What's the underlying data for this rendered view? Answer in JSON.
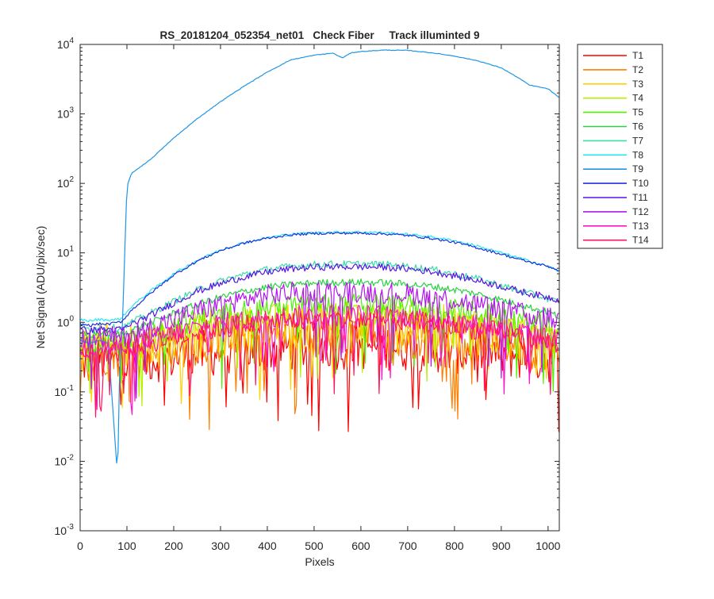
{
  "chart_data": {
    "type": "line",
    "title": "RS_20181204_052354_net01   Check Fiber     Track illuminted 9",
    "xlabel": "Pixels",
    "ylabel": "Net Signal (ADU/pix/sec)",
    "xlim": [
      0,
      1024
    ],
    "ylim": [
      0.001,
      10000
    ],
    "y_scale": "log",
    "grid": false,
    "legend_position": "outside-right",
    "x_ticks": [
      "0",
      "100",
      "200",
      "300",
      "400",
      "500",
      "600",
      "700",
      "800",
      "900",
      "1000"
    ],
    "y_ticks": [
      {
        "base": "10",
        "exp": "-3"
      },
      {
        "base": "10",
        "exp": "-2"
      },
      {
        "base": "10",
        "exp": "-1"
      },
      {
        "base": "10",
        "exp": "0"
      },
      {
        "base": "10",
        "exp": "1"
      },
      {
        "base": "10",
        "exp": "2"
      },
      {
        "base": "10",
        "exp": "3"
      },
      {
        "base": "10",
        "exp": "4"
      }
    ],
    "x": [
      0,
      20,
      40,
      60,
      80,
      85,
      90,
      100,
      110,
      150,
      200,
      250,
      300,
      350,
      400,
      450,
      500,
      540,
      560,
      580,
      600,
      650,
      700,
      750,
      800,
      850,
      900,
      940,
      960,
      1000,
      1024
    ],
    "series": [
      {
        "name": "T1",
        "color": "#ff0000",
        "values": [
          0.3,
          0.25,
          0.3,
          0.28,
          0.26,
          0.26,
          0.26,
          0.27,
          0.28,
          0.3,
          0.32,
          0.35,
          0.38,
          0.4,
          0.42,
          0.44,
          0.45,
          0.46,
          0.46,
          0.46,
          0.46,
          0.45,
          0.44,
          0.42,
          0.4,
          0.38,
          0.35,
          0.33,
          0.32,
          0.3,
          0.28
        ]
      },
      {
        "name": "T2",
        "color": "#ff7f00",
        "values": [
          0.4,
          0.35,
          0.38,
          0.37,
          0.36,
          0.36,
          0.36,
          0.37,
          0.38,
          0.42,
          0.48,
          0.52,
          0.56,
          0.6,
          0.64,
          0.68,
          0.7,
          0.71,
          0.71,
          0.71,
          0.71,
          0.7,
          0.68,
          0.65,
          0.62,
          0.58,
          0.54,
          0.5,
          0.48,
          0.45,
          0.42
        ]
      },
      {
        "name": "T3",
        "color": "#ffd200",
        "values": [
          0.45,
          0.4,
          0.44,
          0.43,
          0.42,
          0.42,
          0.42,
          0.43,
          0.45,
          0.5,
          0.58,
          0.65,
          0.72,
          0.78,
          0.84,
          0.88,
          0.9,
          0.91,
          0.91,
          0.91,
          0.91,
          0.9,
          0.88,
          0.85,
          0.8,
          0.75,
          0.68,
          0.62,
          0.6,
          0.55,
          0.5
        ]
      },
      {
        "name": "T4",
        "color": "#b4f000",
        "values": [
          0.5,
          0.45,
          0.5,
          0.49,
          0.48,
          0.48,
          0.48,
          0.5,
          0.52,
          0.6,
          0.72,
          0.85,
          0.98,
          1.1,
          1.2,
          1.26,
          1.3,
          1.32,
          1.32,
          1.32,
          1.32,
          1.3,
          1.26,
          1.2,
          1.12,
          1.02,
          0.9,
          0.8,
          0.76,
          0.68,
          0.6
        ]
      },
      {
        "name": "T5",
        "color": "#50f000",
        "values": [
          0.55,
          0.5,
          0.55,
          0.54,
          0.53,
          0.53,
          0.53,
          0.56,
          0.6,
          0.72,
          0.9,
          1.1,
          1.3,
          1.5,
          1.65,
          1.75,
          1.8,
          1.82,
          1.82,
          1.82,
          1.82,
          1.8,
          1.74,
          1.65,
          1.52,
          1.38,
          1.2,
          1.05,
          1.0,
          0.88,
          0.78
        ]
      },
      {
        "name": "T6",
        "color": "#28d240",
        "values": [
          0.7,
          0.65,
          0.7,
          0.69,
          0.68,
          0.68,
          0.68,
          0.72,
          0.78,
          0.98,
          1.35,
          1.8,
          2.3,
          2.8,
          3.2,
          3.5,
          3.7,
          3.75,
          3.76,
          3.78,
          3.78,
          3.72,
          3.55,
          3.3,
          2.95,
          2.55,
          2.1,
          1.8,
          1.65,
          1.4,
          1.2
        ]
      },
      {
        "name": "T7",
        "color": "#3cdcaa",
        "values": [
          0.85,
          0.8,
          0.85,
          0.84,
          0.83,
          0.83,
          0.83,
          0.9,
          1.0,
          1.35,
          2.0,
          2.9,
          3.9,
          4.9,
          5.8,
          6.4,
          6.8,
          6.9,
          6.9,
          6.9,
          6.9,
          6.8,
          6.4,
          5.8,
          5.0,
          4.2,
          3.4,
          2.8,
          2.6,
          2.2,
          1.9
        ]
      },
      {
        "name": "T8",
        "color": "#28e6f0",
        "values": [
          1.1,
          1.05,
          1.1,
          1.08,
          1.1,
          1.12,
          1.2,
          1.4,
          1.7,
          2.8,
          5.0,
          7.8,
          11.0,
          14.0,
          16.5,
          18.5,
          19.5,
          19.8,
          19.9,
          19.9,
          20.0,
          19.5,
          18.5,
          17.0,
          15.0,
          12.5,
          10.0,
          8.4,
          7.6,
          6.4,
          5.4
        ]
      },
      {
        "name": "T9",
        "color": "#1e96e6",
        "values": [
          0.55,
          0.5,
          0.55,
          0.5,
          0.006,
          0.3,
          0.8,
          90.0,
          140.0,
          220.0,
          450.0,
          850.0,
          1500.0,
          2500.0,
          4000.0,
          6000.0,
          7000.0,
          7500.0,
          6400.0,
          7600.0,
          7900.0,
          8300.0,
          8200.0,
          7600.0,
          6800.0,
          5800.0,
          4600.0,
          3200.0,
          2600.0,
          2300.0,
          1700.0
        ]
      },
      {
        "name": "T10",
        "color": "#1e32dc",
        "values": [
          0.95,
          0.9,
          0.95,
          0.94,
          1.0,
          1.0,
          1.05,
          1.25,
          1.5,
          2.6,
          4.8,
          7.6,
          10.8,
          13.8,
          16.3,
          18.2,
          19.0,
          19.2,
          19.2,
          19.2,
          19.2,
          18.8,
          17.8,
          16.2,
          14.2,
          11.8,
          9.6,
          8.0,
          7.4,
          6.4,
          5.6
        ]
      },
      {
        "name": "T11",
        "color": "#5a14e6",
        "values": [
          0.8,
          0.75,
          0.8,
          0.79,
          0.78,
          0.78,
          0.78,
          0.85,
          0.95,
          1.25,
          1.9,
          2.8,
          3.6,
          4.5,
          5.3,
          5.9,
          6.2,
          6.3,
          6.3,
          6.3,
          6.3,
          6.2,
          5.9,
          5.4,
          4.7,
          4.0,
          3.3,
          2.8,
          2.6,
          2.3,
          2.1
        ]
      },
      {
        "name": "T12",
        "color": "#b414f0",
        "values": [
          0.62,
          0.58,
          0.62,
          0.61,
          0.6,
          0.6,
          0.6,
          0.64,
          0.7,
          0.85,
          1.1,
          1.45,
          1.8,
          2.15,
          2.45,
          2.65,
          2.75,
          2.78,
          2.78,
          2.78,
          2.78,
          2.7,
          2.55,
          2.35,
          2.1,
          1.8,
          1.55,
          1.35,
          1.28,
          1.15,
          1.05
        ]
      },
      {
        "name": "T13",
        "color": "#ff14c8",
        "values": [
          0.45,
          0.42,
          0.45,
          0.44,
          0.43,
          0.43,
          0.43,
          0.46,
          0.5,
          0.58,
          0.7,
          0.82,
          0.95,
          1.05,
          1.15,
          1.22,
          1.25,
          1.26,
          1.26,
          1.26,
          1.26,
          1.24,
          1.2,
          1.12,
          1.02,
          0.92,
          0.8,
          0.72,
          0.68,
          0.6,
          0.55
        ]
      },
      {
        "name": "T14",
        "color": "#ff1464",
        "values": [
          0.4,
          0.38,
          0.4,
          0.39,
          0.38,
          0.38,
          0.38,
          0.4,
          0.44,
          0.52,
          0.62,
          0.72,
          0.82,
          0.92,
          1.0,
          1.05,
          1.08,
          1.09,
          1.09,
          1.09,
          1.09,
          1.07,
          1.03,
          0.97,
          0.88,
          0.8,
          0.7,
          0.62,
          0.59,
          0.53,
          0.48
        ]
      }
    ]
  }
}
